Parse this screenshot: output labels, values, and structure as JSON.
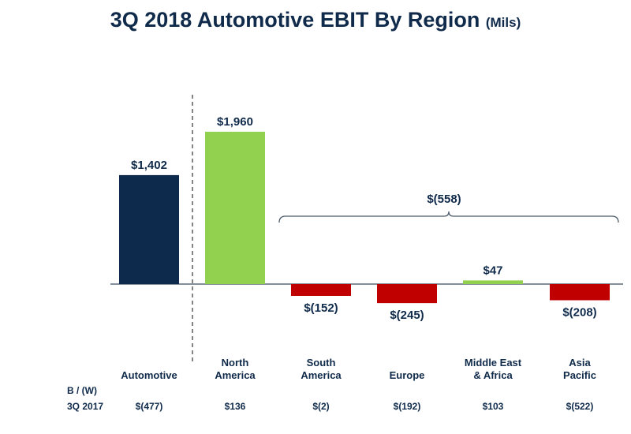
{
  "chart_data": {
    "type": "bar",
    "title": "3Q 2018 Automotive EBIT By Region",
    "unit": "(Mils)",
    "categories": [
      "Automotive",
      "North America",
      "South America",
      "Europe",
      "Middle East & Africa",
      "Asia Pacific"
    ],
    "category_lines": [
      [
        "Automotive"
      ],
      [
        "North",
        "America"
      ],
      [
        "South",
        "America"
      ],
      [
        "Europe"
      ],
      [
        "Middle East",
        "& Africa"
      ],
      [
        "Asia",
        "Pacific"
      ]
    ],
    "values": [
      1402,
      1960,
      -152,
      -245,
      47,
      -208
    ],
    "data_labels": [
      "$1,402",
      "$1,960",
      "$(152)",
      "$(245)",
      "$47",
      "$(208)"
    ],
    "bar_colors": [
      "#0d2a4d",
      "#92d050",
      "#c00000",
      "#c00000",
      "#92d050",
      "#c00000"
    ],
    "bracket_label": "$(558)",
    "comparison": {
      "header": "B / (W)",
      "row_label": "3Q 2017",
      "values": [
        "$(477)",
        "$136",
        "$(2)",
        "$(192)",
        "$103",
        "$(522)"
      ]
    }
  }
}
